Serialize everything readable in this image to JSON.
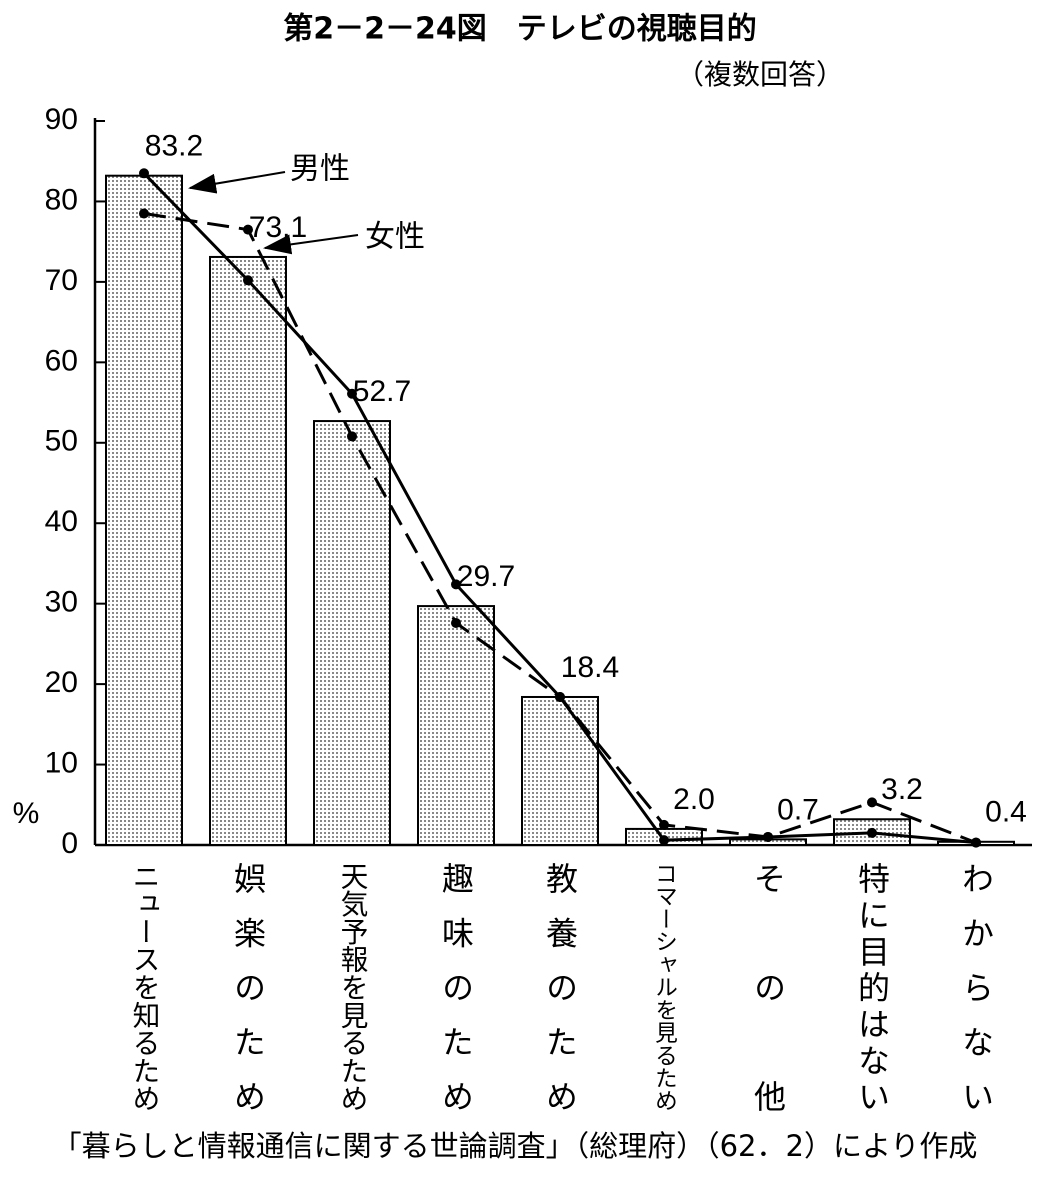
{
  "chart_data": {
    "type": "bar-line",
    "title": "第2－2－24図　テレビの視聴目的",
    "subtitle": "（複数回答）",
    "y_label": "%",
    "source": "「暮らしと情報通信に関する世論調査」（総理府）（62．2）により作成",
    "categories": [
      "ニュースを知るため",
      "娯楽のため",
      "天気予報を見るため",
      "趣味のため",
      "教養のため",
      "コマーシャルを見るため",
      "その他",
      "特に目的はない",
      "わからない"
    ],
    "values": [
      83.2,
      73.1,
      52.7,
      29.7,
      18.4,
      2.0,
      0.7,
      3.2,
      0.4
    ],
    "value_labels": [
      "83.2",
      "73.1",
      "52.7",
      "29.7",
      "18.4",
      "2.0",
      "0.7",
      "3.2",
      "0.4"
    ],
    "color": "#d8d8d8",
    "series": [
      {
        "name": "男性",
        "color": "#000000",
        "dash": false,
        "values": [
          83.5,
          70.2,
          56.1,
          32.4,
          18.4,
          0.6,
          1.0,
          1.5,
          0.3
        ]
      },
      {
        "name": "女性",
        "color": "#000000",
        "dash": true,
        "values": [
          78.5,
          76.5,
          50.8,
          27.6,
          18.4,
          2.5,
          1.0,
          5.3,
          0.3
        ]
      }
    ],
    "ylim": [
      0,
      90
    ],
    "yticks": [
      0,
      10,
      20,
      30,
      40,
      50,
      60,
      70,
      80,
      90
    ],
    "grid": false
  }
}
